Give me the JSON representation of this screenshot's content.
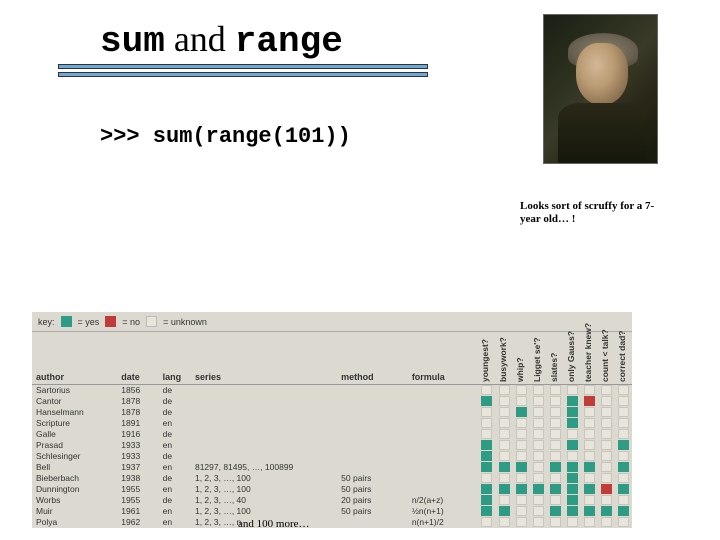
{
  "title": {
    "part1": "sum",
    "mid": " and ",
    "part2": "range"
  },
  "underline_color": "#6ca9d8",
  "code": ">>> sum(range(101))",
  "caption": "Looks sort of scruffy for a 7-year old… !",
  "footer": "and 100 more…",
  "legend": {
    "label": "key:",
    "items": [
      {
        "color": "#2e9b84",
        "text": "= yes"
      },
      {
        "color": "#c23b3b",
        "text": "= no"
      },
      {
        "color": "#e8e6dc",
        "text": "= unknown"
      }
    ]
  },
  "table": {
    "text_headers": [
      "author",
      "date",
      "lang",
      "series",
      "method",
      "formula"
    ],
    "rot_headers": [
      "youngest?",
      "busywork?",
      "whip?",
      "Ligget se'?",
      "slates?",
      "only Gauss?",
      "teacher knew?",
      "count < talk?",
      "correct dad?"
    ],
    "colors": {
      "yes": "#2e9b84",
      "no": "#c23b3b",
      "unk": "#e8e6dc"
    },
    "rows": [
      {
        "author": "Sartorius",
        "date": "1856",
        "lang": "de",
        "series": "",
        "method": "",
        "formula": "",
        "cells": [
          "u",
          "u",
          "u",
          "u",
          "u",
          "u",
          "u",
          "u",
          "u"
        ]
      },
      {
        "author": "Cantor",
        "date": "1878",
        "lang": "de",
        "series": "",
        "method": "",
        "formula": "",
        "cells": [
          "y",
          "u",
          "u",
          "u",
          "u",
          "y",
          "n",
          "u",
          "u"
        ]
      },
      {
        "author": "Hanselmann",
        "date": "1878",
        "lang": "de",
        "series": "",
        "method": "",
        "formula": "",
        "cells": [
          "u",
          "u",
          "y",
          "u",
          "u",
          "y",
          "u",
          "u",
          "u"
        ]
      },
      {
        "author": "Scripture",
        "date": "1891",
        "lang": "en",
        "series": "",
        "method": "",
        "formula": "",
        "cells": [
          "u",
          "u",
          "u",
          "u",
          "u",
          "y",
          "u",
          "u",
          "u"
        ]
      },
      {
        "author": "Galle",
        "date": "1916",
        "lang": "de",
        "series": "",
        "method": "",
        "formula": "",
        "cells": [
          "u",
          "u",
          "u",
          "u",
          "u",
          "u",
          "u",
          "u",
          "u"
        ]
      },
      {
        "author": "Prasad",
        "date": "1933",
        "lang": "en",
        "series": "",
        "method": "",
        "formula": "",
        "cells": [
          "y",
          "u",
          "u",
          "u",
          "u",
          "y",
          "u",
          "u",
          "y"
        ]
      },
      {
        "author": "Schlesinger",
        "date": "1933",
        "lang": "de",
        "series": "",
        "method": "",
        "formula": "",
        "cells": [
          "y",
          "u",
          "u",
          "u",
          "u",
          "u",
          "u",
          "u",
          "u"
        ]
      },
      {
        "author": "Bell",
        "date": "1937",
        "lang": "en",
        "series": "81297, 81495, …, 100899",
        "method": "",
        "formula": "",
        "cells": [
          "y",
          "y",
          "y",
          "u",
          "y",
          "y",
          "y",
          "u",
          "y"
        ]
      },
      {
        "author": "Bieberbach",
        "date": "1938",
        "lang": "de",
        "series": "1, 2, 3, …, 100",
        "method": "50 pairs",
        "formula": "",
        "cells": [
          "u",
          "u",
          "u",
          "u",
          "u",
          "y",
          "u",
          "u",
          "u"
        ]
      },
      {
        "author": "Dunnington",
        "date": "1955",
        "lang": "en",
        "series": "1, 2, 3, …, 100",
        "method": "50 pairs",
        "formula": "",
        "cells": [
          "y",
          "y",
          "y",
          "y",
          "y",
          "y",
          "y",
          "n",
          "y"
        ]
      },
      {
        "author": "Worbs",
        "date": "1955",
        "lang": "de",
        "series": "1, 2, 3, …, 40",
        "method": "20 pairs",
        "formula": "n/2(a+z)",
        "cells": [
          "y",
          "u",
          "u",
          "u",
          "u",
          "y",
          "u",
          "u",
          "u"
        ]
      },
      {
        "author": "Muir",
        "date": "1961",
        "lang": "en",
        "series": "1, 2, 3, …, 100",
        "method": "50 pairs",
        "formula": "½n(n+1)",
        "cells": [
          "y",
          "y",
          "u",
          "u",
          "y",
          "y",
          "y",
          "y",
          "y"
        ]
      },
      {
        "author": "Polya",
        "date": "1962",
        "lang": "en",
        "series": "1, 2, 3, …, n",
        "method": "",
        "formula": "n(n+1)/2",
        "cells": [
          "u",
          "u",
          "u",
          "u",
          "u",
          "u",
          "u",
          "u",
          "u"
        ]
      }
    ]
  }
}
